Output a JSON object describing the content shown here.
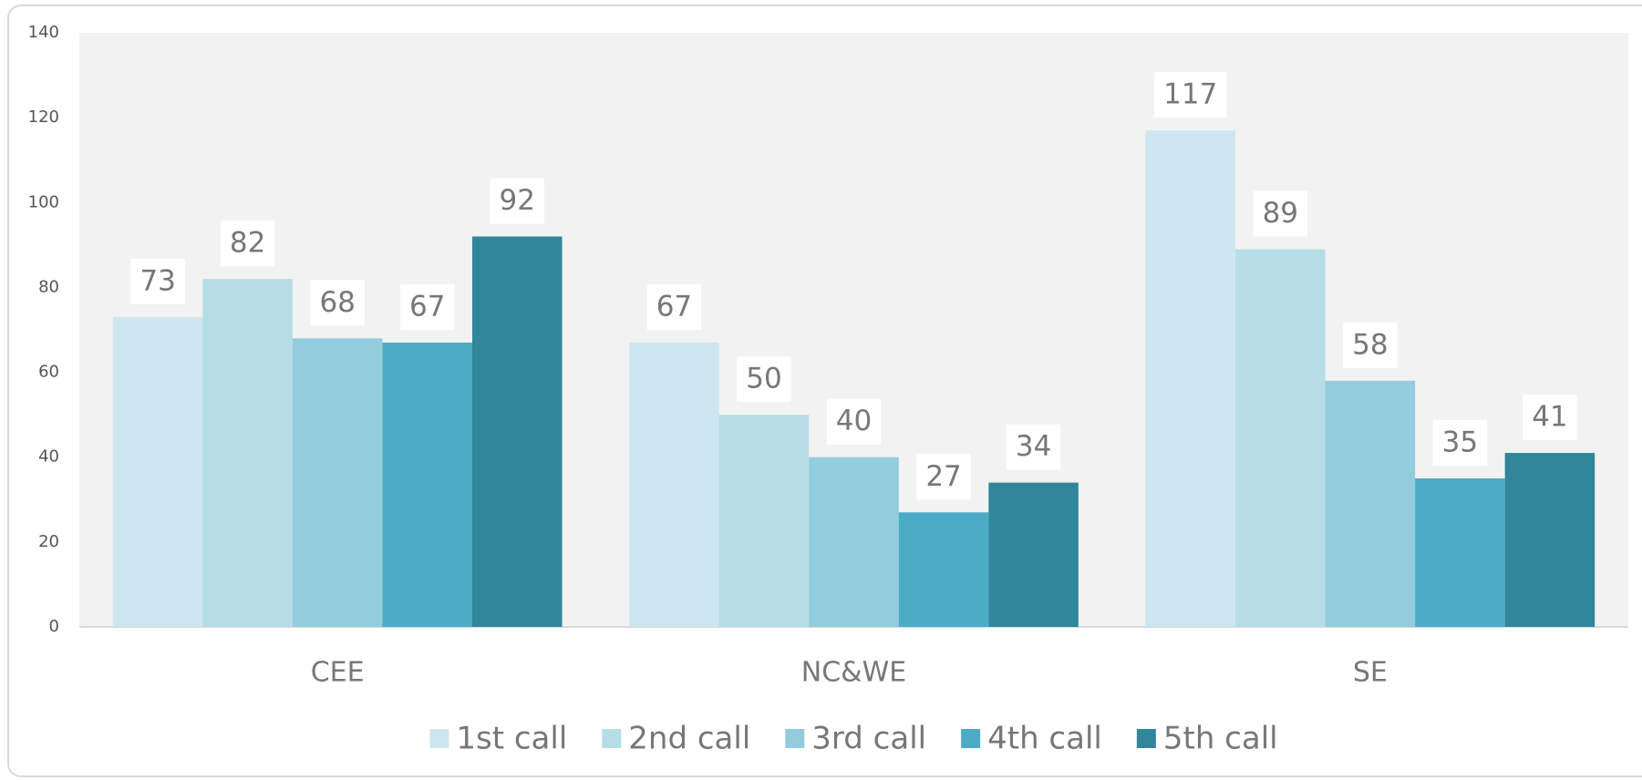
{
  "chart_data": {
    "type": "bar",
    "categories": [
      "CEE",
      "NC&WE",
      "SE"
    ],
    "series": [
      {
        "name": "1st call",
        "color": "#cde6ef",
        "values": [
          73,
          67,
          117
        ]
      },
      {
        "name": "2nd call",
        "color": "#b6dde7",
        "values": [
          82,
          50,
          89
        ]
      },
      {
        "name": "3rd call",
        "color": "#93ccdc",
        "values": [
          68,
          40,
          58
        ]
      },
      {
        "name": "4th call",
        "color": "#4aacc6",
        "values": [
          67,
          27,
          35
        ]
      },
      {
        "name": "5th call",
        "color": "#31869b",
        "values": [
          92,
          34,
          41
        ]
      }
    ],
    "ylim": [
      0,
      140
    ],
    "yticks": [
      0,
      20,
      40,
      60,
      80,
      100,
      120,
      140
    ],
    "grid": false,
    "legend": "bottom"
  }
}
